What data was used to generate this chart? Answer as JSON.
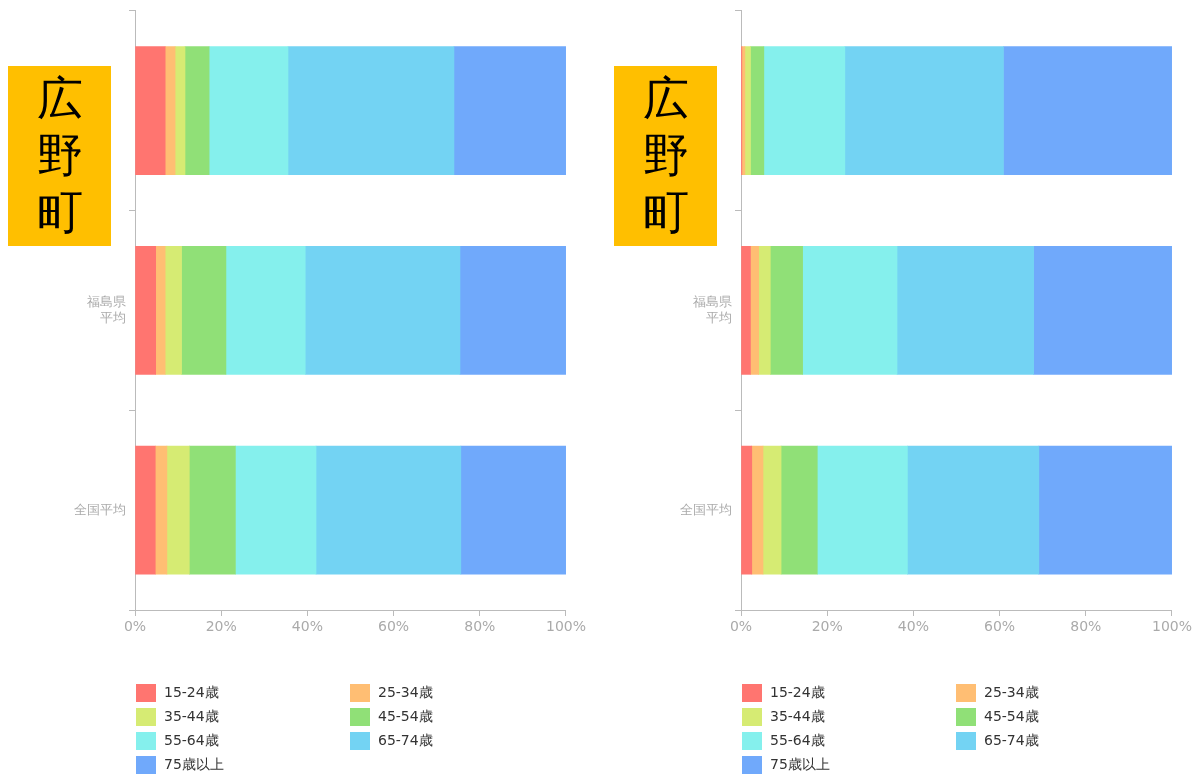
{
  "chart_data": [
    {
      "type": "bar",
      "orientation": "horizontal",
      "stacked": true,
      "grid": false,
      "legend": "bottom",
      "categories": [
        null,
        "福島県平均",
        "全国平均"
      ],
      "xlim": [
        0,
        100
      ],
      "xticks": [
        {
          "value": 0,
          "label": "0%"
        },
        {
          "value": 20,
          "label": "20%"
        },
        {
          "value": 40,
          "label": "40%"
        },
        {
          "value": 60,
          "label": "60%"
        },
        {
          "value": 80,
          "label": "80%"
        },
        {
          "value": 100,
          "label": "100%"
        }
      ],
      "annotations": [
        "広野町"
      ],
      "series": [
        {
          "name": "15-24歳",
          "color": "#ff7570",
          "values": [
            7.0,
            4.8,
            4.7
          ]
        },
        {
          "name": "25-34歳",
          "color": "#ffbe73",
          "values": [
            2.3,
            2.2,
            2.7
          ]
        },
        {
          "name": "35-44歳",
          "color": "#d6eb73",
          "values": [
            2.3,
            3.8,
            5.2
          ]
        },
        {
          "name": "45-54歳",
          "color": "#90e077",
          "values": [
            5.6,
            10.3,
            10.7
          ]
        },
        {
          "name": "55-64歳",
          "color": "#85f0ed",
          "values": [
            18.3,
            18.4,
            18.7
          ]
        },
        {
          "name": "65-74歳",
          "color": "#73d3f3",
          "values": [
            38.5,
            35.9,
            33.6
          ]
        },
        {
          "name": "75歳以上",
          "color": "#70a9fb",
          "values": [
            26.0,
            24.6,
            24.4
          ]
        }
      ]
    },
    {
      "type": "bar",
      "orientation": "horizontal",
      "stacked": true,
      "grid": false,
      "legend": "bottom",
      "categories": [
        null,
        "福島県平均",
        "全国平均"
      ],
      "xlim": [
        0,
        100
      ],
      "xticks": [
        {
          "value": 0,
          "label": "0%"
        },
        {
          "value": 20,
          "label": "20%"
        },
        {
          "value": 40,
          "label": "40%"
        },
        {
          "value": 60,
          "label": "60%"
        },
        {
          "value": 80,
          "label": "80%"
        },
        {
          "value": 100,
          "label": "100%"
        }
      ],
      "annotations": [
        "広野町"
      ],
      "series": [
        {
          "name": "15-24歳",
          "color": "#ff7570",
          "values": [
            0.2,
            2.2,
            2.5
          ]
        },
        {
          "name": "25-34歳",
          "color": "#ffbe73",
          "values": [
            0.7,
            1.9,
            2.6
          ]
        },
        {
          "name": "35-44歳",
          "color": "#d6eb73",
          "values": [
            1.3,
            2.7,
            4.2
          ]
        },
        {
          "name": "45-54歳",
          "color": "#90e077",
          "values": [
            3.1,
            7.5,
            8.4
          ]
        },
        {
          "name": "55-64歳",
          "color": "#85f0ed",
          "values": [
            18.8,
            21.9,
            20.9
          ]
        },
        {
          "name": "65-74歳",
          "color": "#73d3f3",
          "values": [
            36.8,
            31.7,
            30.5
          ]
        },
        {
          "name": "75歳以上",
          "color": "#70a9fb",
          "values": [
            39.1,
            32.1,
            30.9
          ]
        }
      ]
    }
  ]
}
